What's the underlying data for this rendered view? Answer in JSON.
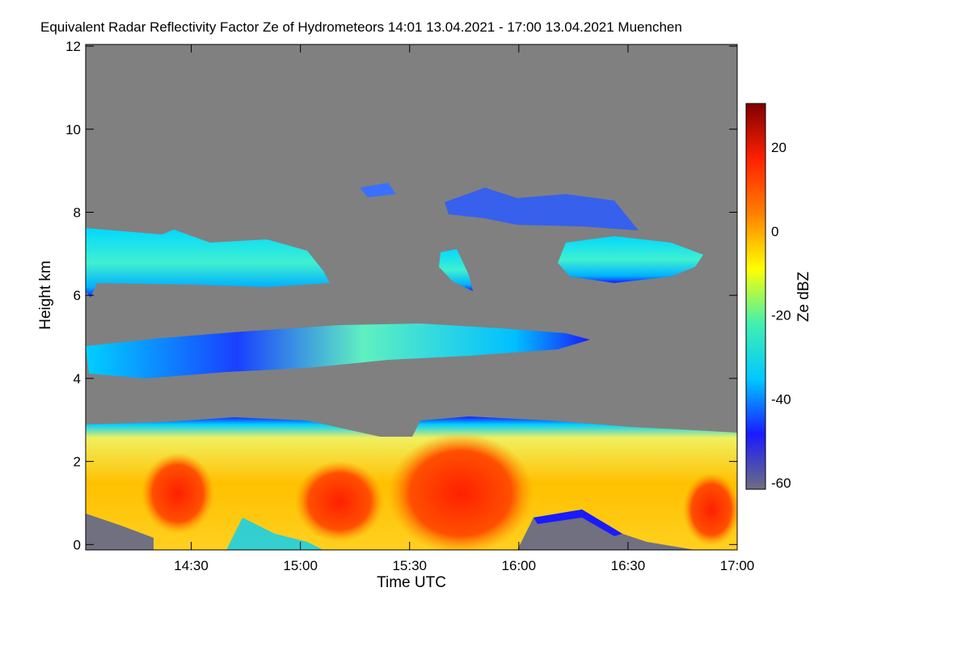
{
  "chart_data": {
    "type": "heatmap",
    "title": "Equivalent Radar Reflectivity Factor Ze of Hydrometeors   14:01 13.04.2021 - 17:00 13.04.2021 Muenchen",
    "x_label": "Time UTC",
    "y_label": "Height km",
    "xlim": [
      841,
      1020
    ],
    "xticks": [
      {
        "value": 870,
        "label": "14:30"
      },
      {
        "value": 900,
        "label": "15:00"
      },
      {
        "value": 930,
        "label": "15:30"
      },
      {
        "value": 960,
        "label": "16:00"
      },
      {
        "value": 990,
        "label": "16:30"
      },
      {
        "value": 1020,
        "label": "17:00"
      }
    ],
    "ylim": [
      -0.13,
      12.04
    ],
    "yticks": [
      0,
      2,
      4,
      6,
      8,
      10,
      12
    ],
    "colorbar_label": "Ze dBZ",
    "zlim": [
      -61.5,
      30.4
    ],
    "zticks": [
      -60,
      -40,
      -20,
      0,
      20
    ],
    "colormap": [
      "#6e6e80",
      "#1a1aff",
      "#00c8ff",
      "#40f0b0",
      "#ffff00",
      "#ff8000",
      "#ff2000",
      "#800000"
    ],
    "background_color": "#808080"
  }
}
